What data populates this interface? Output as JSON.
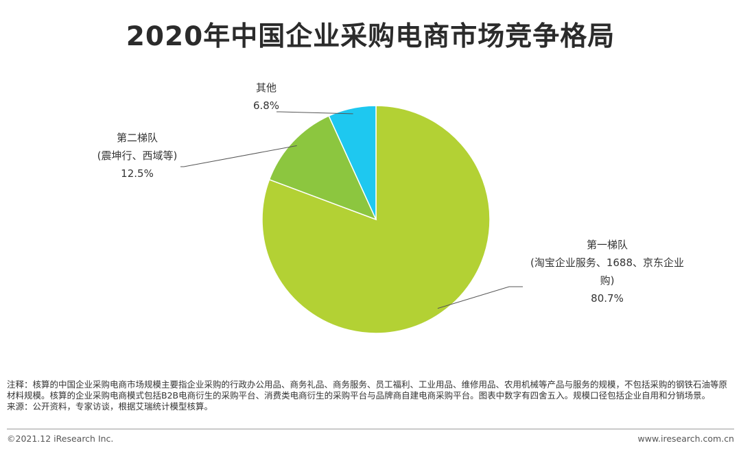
{
  "title": "2020年中国企业采购电商市场竞争格局",
  "chart_data": {
    "type": "pie",
    "title": "2020年中国企业采购电商市场竞争格局",
    "slices": [
      {
        "name_lines": [
          "第一梯队",
          "(淘宝企业服务、1688、京东企业",
          "购)"
        ],
        "label": "80.7%",
        "value": 80.7,
        "color": "#b3d134"
      },
      {
        "name_lines": [
          "第二梯队",
          "(震坤行、西域等)"
        ],
        "label": "12.5%",
        "value": 12.5,
        "color": "#8cc63f"
      },
      {
        "name_lines": [
          "其他"
        ],
        "label": "6.8%",
        "value": 6.8,
        "color": "#1ec8f0"
      }
    ],
    "legend": "none"
  },
  "notes": {
    "note_text": "注释：核算的中国企业采购电商市场规模主要指企业采购的行政办公用品、商务礼品、商务服务、员工福利、工业用品、维修用品、农用机械等产品与服务的规模，不包括采购的钢铁石油等原材料规模。核算的企业采购电商模式包括B2B电商衍生的采购平台、消费类电商衍生的采购平台与品牌商自建电商采购平台。图表中数字有四舍五入。规模口径包括企业自用和分销场景。",
    "source_text": "来源：公开资料，专家访谈，根据艾瑞统计模型核算。"
  },
  "footer": {
    "copyright": "©2021.12 iResearch Inc.",
    "website": "www.iresearch.com.cn"
  }
}
